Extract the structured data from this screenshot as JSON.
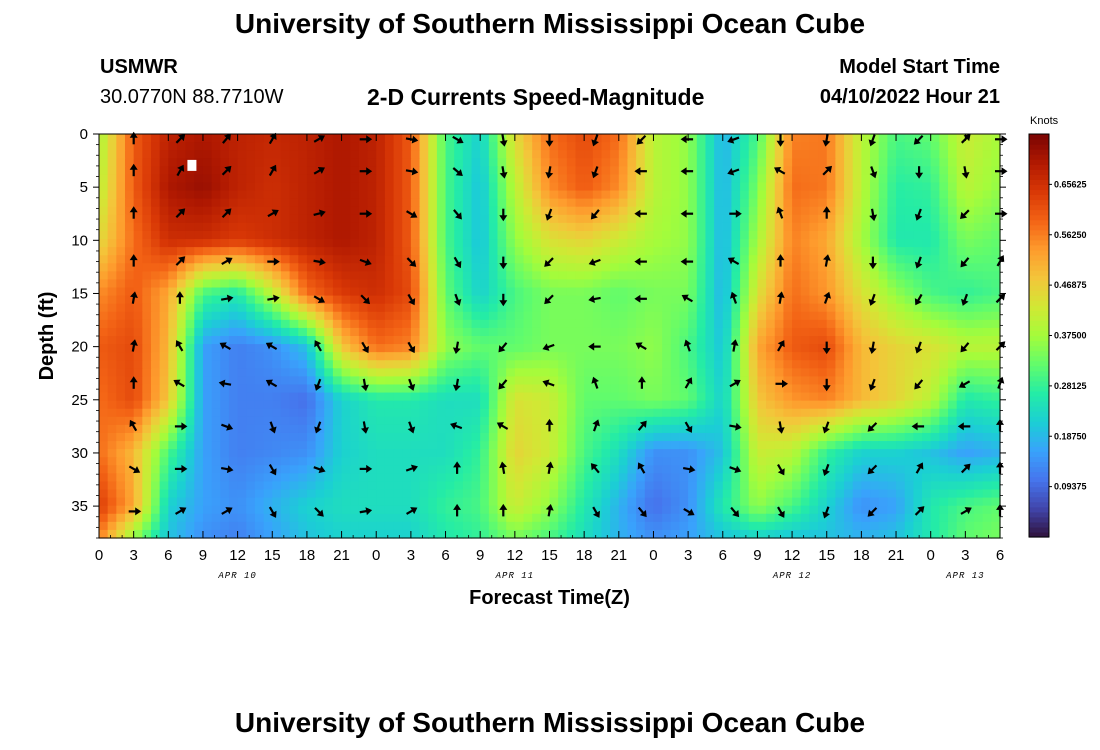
{
  "header": {
    "title": "University of Southern Mississippi Ocean Cube",
    "station": "USMWR",
    "coordinates": "30.0770N  88.7710W",
    "subtitle": "2-D Currents Speed-Magnitude",
    "model_start_label": "Model Start Time",
    "model_start_value": "04/10/2022 Hour 21"
  },
  "footer": {
    "title": "University of Southern Mississippi Ocean Cube"
  },
  "colors": {
    "scale": [
      "#30123b",
      "#4145ab",
      "#4675ed",
      "#39a2fc",
      "#1bcfd4",
      "#24eca6",
      "#61fc6c",
      "#a4fc3b",
      "#d1e834",
      "#f3c63a",
      "#fe9b2d",
      "#f36315",
      "#d93806",
      "#b11901",
      "#7a0403"
    ],
    "marker": "#ffffff"
  },
  "chart_data": {
    "type": "heatmap",
    "title": "2-D Currents Speed-Magnitude",
    "xlabel": "Forecast Time(Z)",
    "ylabel": "Depth (ft)",
    "x_unit": "forecast hours since 04/10/2022 00Z",
    "xlim": [
      0,
      78
    ],
    "ylim": [
      38,
      0
    ],
    "x_ticks": [
      0,
      3,
      6,
      9,
      12,
      15,
      18,
      21,
      24,
      27,
      30,
      33,
      36,
      39,
      42,
      45,
      48,
      51,
      54,
      57,
      60,
      63,
      66,
      69,
      72,
      75,
      78
    ],
    "x_tick_labels": [
      "0",
      "3",
      "6",
      "9",
      "12",
      "15",
      "18",
      "21",
      "0",
      "3",
      "6",
      "9",
      "12",
      "15",
      "18",
      "21",
      "0",
      "3",
      "6",
      "9",
      "12",
      "15",
      "18",
      "21",
      "0",
      "3",
      "6"
    ],
    "y_ticks": [
      0,
      5,
      10,
      15,
      20,
      25,
      30,
      35
    ],
    "y_tick_labels": [
      "0",
      "5",
      "10",
      "15",
      "20",
      "25",
      "30",
      "35"
    ],
    "date_labels": [
      {
        "hour": 12,
        "text": "APR 10"
      },
      {
        "hour": 36,
        "text": "APR 11"
      },
      {
        "hour": 60,
        "text": "APR 12"
      },
      {
        "hour": 75,
        "text": "APR 13"
      }
    ],
    "colorbar": {
      "unit": "Knots",
      "min": 0.0,
      "max": 0.75,
      "tick_values": [
        0.65625,
        0.5625,
        0.46875,
        0.375,
        0.28125,
        0.1875,
        0.09375
      ],
      "tick_labels": [
        "0.65625",
        "0.56250",
        "0.46875",
        "0.37500",
        "0.28125",
        "0.18750",
        "0.09375"
      ]
    },
    "speed_field_anchors": {
      "depths_ft": [
        0,
        5,
        10,
        15,
        20,
        25,
        30,
        35,
        38
      ],
      "hours": [
        0,
        3,
        6,
        9,
        12,
        15,
        18,
        21,
        24,
        27,
        30,
        33,
        36,
        39,
        42,
        45,
        48,
        51,
        54,
        57,
        60,
        63,
        66,
        69,
        72,
        75,
        78
      ],
      "speed_knots": [
        [
          0.38,
          0.6,
          0.68,
          0.7,
          0.68,
          0.67,
          0.68,
          0.7,
          0.68,
          0.6,
          0.3,
          0.22,
          0.45,
          0.58,
          0.62,
          0.58,
          0.4,
          0.36,
          0.18,
          0.3,
          0.56,
          0.57,
          0.4,
          0.3,
          0.32,
          0.42,
          0.38
        ],
        [
          0.4,
          0.6,
          0.7,
          0.72,
          0.68,
          0.66,
          0.68,
          0.7,
          0.68,
          0.6,
          0.3,
          0.2,
          0.4,
          0.55,
          0.6,
          0.55,
          0.4,
          0.36,
          0.18,
          0.34,
          0.58,
          0.57,
          0.4,
          0.27,
          0.28,
          0.4,
          0.36
        ],
        [
          0.45,
          0.58,
          0.66,
          0.66,
          0.64,
          0.66,
          0.68,
          0.7,
          0.68,
          0.6,
          0.3,
          0.2,
          0.36,
          0.44,
          0.46,
          0.42,
          0.38,
          0.36,
          0.18,
          0.38,
          0.56,
          0.52,
          0.38,
          0.26,
          0.26,
          0.34,
          0.32
        ],
        [
          0.55,
          0.6,
          0.52,
          0.3,
          0.26,
          0.4,
          0.58,
          0.64,
          0.66,
          0.62,
          0.32,
          0.22,
          0.3,
          0.34,
          0.34,
          0.32,
          0.34,
          0.34,
          0.18,
          0.44,
          0.58,
          0.54,
          0.44,
          0.36,
          0.3,
          0.28,
          0.3
        ],
        [
          0.6,
          0.62,
          0.5,
          0.16,
          0.12,
          0.14,
          0.2,
          0.48,
          0.58,
          0.56,
          0.36,
          0.32,
          0.32,
          0.34,
          0.34,
          0.34,
          0.36,
          0.3,
          0.2,
          0.52,
          0.6,
          0.62,
          0.5,
          0.46,
          0.44,
          0.4,
          0.4
        ],
        [
          0.58,
          0.62,
          0.48,
          0.16,
          0.12,
          0.12,
          0.1,
          0.22,
          0.26,
          0.26,
          0.24,
          0.24,
          0.44,
          0.42,
          0.32,
          0.32,
          0.34,
          0.32,
          0.22,
          0.48,
          0.54,
          0.56,
          0.5,
          0.46,
          0.4,
          0.26,
          0.28
        ],
        [
          0.58,
          0.5,
          0.3,
          0.16,
          0.12,
          0.13,
          0.14,
          0.22,
          0.24,
          0.24,
          0.24,
          0.28,
          0.46,
          0.42,
          0.3,
          0.24,
          0.14,
          0.14,
          0.2,
          0.42,
          0.4,
          0.28,
          0.22,
          0.22,
          0.2,
          0.16,
          0.18
        ],
        [
          0.64,
          0.52,
          0.22,
          0.16,
          0.14,
          0.18,
          0.22,
          0.24,
          0.24,
          0.24,
          0.28,
          0.3,
          0.42,
          0.36,
          0.26,
          0.18,
          0.1,
          0.14,
          0.26,
          0.36,
          0.3,
          0.22,
          0.14,
          0.16,
          0.26,
          0.3,
          0.32
        ],
        [
          0.56,
          0.36,
          0.2,
          0.14,
          0.12,
          0.16,
          0.2,
          0.22,
          0.22,
          0.22,
          0.26,
          0.28,
          0.34,
          0.3,
          0.24,
          0.18,
          0.14,
          0.16,
          0.2,
          0.22,
          0.2,
          0.2,
          0.18,
          0.2,
          0.26,
          0.32,
          0.34
        ]
      ]
    },
    "current_arrows": {
      "hours": [
        3,
        7,
        11,
        15,
        19,
        23,
        27,
        31,
        35,
        39,
        43,
        47,
        51,
        55,
        59,
        63,
        67,
        71,
        75,
        78
      ],
      "depths_ft": [
        0.5,
        3.5,
        7.5,
        12,
        15.5,
        20,
        23.5,
        27.5,
        31.5,
        35.5
      ],
      "headings_deg": [
        [
          0,
          45,
          40,
          30,
          60,
          90,
          100,
          120,
          170,
          180,
          200,
          225,
          270,
          250,
          180,
          190,
          200,
          225,
          45,
          90
        ],
        [
          0,
          30,
          45,
          30,
          60,
          90,
          100,
          130,
          170,
          190,
          200,
          270,
          270,
          250,
          300,
          45,
          160,
          180,
          170,
          90
        ],
        [
          0,
          45,
          45,
          60,
          75,
          90,
          120,
          140,
          180,
          200,
          220,
          270,
          270,
          90,
          340,
          0,
          170,
          200,
          225,
          90
        ],
        [
          0,
          45,
          60,
          90,
          100,
          110,
          135,
          150,
          180,
          225,
          250,
          270,
          270,
          300,
          0,
          10,
          180,
          200,
          220,
          30
        ],
        [
          10,
          0,
          80,
          80,
          120,
          135,
          150,
          160,
          180,
          225,
          260,
          270,
          300,
          340,
          10,
          20,
          200,
          210,
          200,
          45
        ],
        [
          10,
          330,
          300,
          300,
          330,
          150,
          150,
          190,
          220,
          250,
          270,
          300,
          340,
          10,
          30,
          180,
          190,
          200,
          220,
          45
        ],
        [
          0,
          300,
          280,
          300,
          200,
          170,
          160,
          190,
          220,
          290,
          340,
          0,
          30,
          60,
          90,
          180,
          200,
          220,
          240,
          20
        ],
        [
          330,
          90,
          110,
          160,
          200,
          170,
          160,
          290,
          300,
          0,
          20,
          40,
          150,
          100,
          170,
          200,
          225,
          270,
          270,
          0
        ],
        [
          120,
          90,
          100,
          150,
          110,
          90,
          70,
          0,
          350,
          10,
          320,
          330,
          100,
          110,
          150,
          200,
          225,
          30,
          45,
          0
        ],
        [
          90,
          60,
          60,
          150,
          135,
          80,
          60,
          0,
          0,
          10,
          150,
          140,
          120,
          140,
          150,
          200,
          225,
          45,
          60,
          0
        ]
      ]
    },
    "marker": {
      "hour": 8,
      "depth_ft": 3
    }
  }
}
